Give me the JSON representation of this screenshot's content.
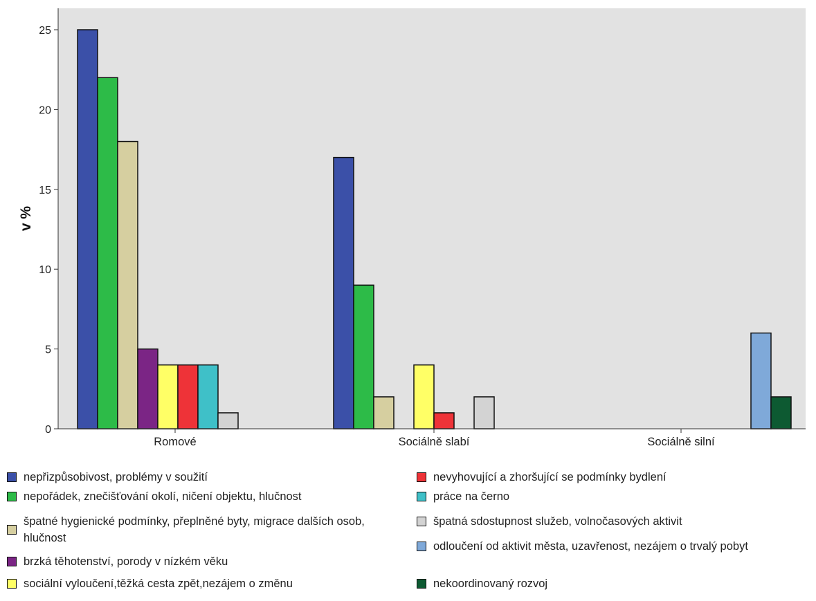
{
  "chart_data": {
    "type": "bar",
    "title": "",
    "ylabel": "v %",
    "xlabel": "",
    "ylim": [
      0,
      26
    ],
    "yticks": [
      "0",
      "5",
      "10",
      "15",
      "20",
      "25"
    ],
    "grid": false,
    "legend_position": "bottom",
    "categories": [
      "Romové",
      "Sociálně slabí",
      "Sociálně silní"
    ],
    "series": [
      {
        "name": "nepřizpůsobivost, problémy v soužití",
        "color": "#3b50a8",
        "values": [
          25,
          17,
          null
        ]
      },
      {
        "name": "nepořádek, znečišťování okolí, ničení objektu, hlučnost",
        "color": "#2dbb48",
        "values": [
          22,
          9,
          null
        ]
      },
      {
        "name": "špatné hygienické podmínky, přeplněné byty, migrace dalších osob, hlučnost",
        "color": "#d6cfa0",
        "values": [
          18,
          2,
          null
        ]
      },
      {
        "name": "brzká těhotenství, porody v nízkém věku",
        "color": "#7b2585",
        "values": [
          5,
          null,
          null
        ]
      },
      {
        "name": "sociální vyloučení,těžká cesta zpět,nezájem o změnu",
        "color": "#ffff66",
        "values": [
          4,
          4,
          null
        ]
      },
      {
        "name": "nevyhovující a zhoršující se podmínky bydlení",
        "color": "#ee3338",
        "values": [
          4,
          1,
          null
        ]
      },
      {
        "name": "práce na černo",
        "color": "#3fc0c8",
        "values": [
          4,
          null,
          null
        ]
      },
      {
        "name": "špatná sdostupnost služeb, volnočasových aktivit",
        "color": "#d3d3d3",
        "values": [
          1,
          2,
          null
        ]
      },
      {
        "name": "odloučení od aktivit města, uzavřenost, nezájem o trvalý pobyt",
        "color": "#7fa9d9",
        "values": [
          null,
          null,
          6
        ]
      },
      {
        "name": "nekoordinovaný rozvoj",
        "color": "#0d5a32",
        "values": [
          null,
          null,
          2
        ]
      }
    ]
  }
}
